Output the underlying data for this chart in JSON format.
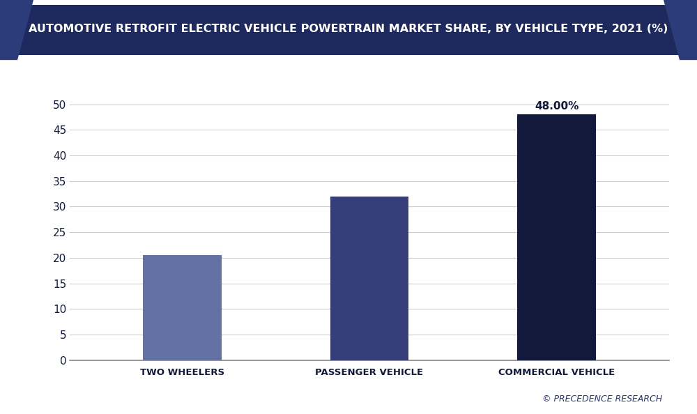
{
  "title": "AUTOMOTIVE RETROFIT ELECTRIC VEHICLE POWERTRAIN MARKET SHARE, BY VEHICLE TYPE, 2021 (%)",
  "categories": [
    "TWO WHEELERS",
    "PASSENGER VEHICLE",
    "COMMERCIAL VEHICLE"
  ],
  "values": [
    20.5,
    32.0,
    48.0
  ],
  "bar_colors": [
    "#6471a3",
    "#363e7a",
    "#12193a"
  ],
  "bar_label": [
    "",
    "",
    "48.00%"
  ],
  "ylim": [
    0,
    55
  ],
  "yticks": [
    0,
    5,
    10,
    15,
    20,
    25,
    30,
    35,
    40,
    45,
    50
  ],
  "background_color": "#ffffff",
  "plot_bg_color": "#ffffff",
  "title_color": "#12193a",
  "title_fontsize": 11.5,
  "tick_label_color": "#12193a",
  "bar_label_color": "#12193a",
  "bar_label_fontsize": 11,
  "grid_color": "#cccccc",
  "header_bg_color": "#1e2a5e",
  "header_text_color": "#ffffff",
  "watermark": "© PRECEDENCE RESEARCH",
  "watermark_color": "#2a3570",
  "axis_line_color": "#888888",
  "bar_width": 0.42
}
